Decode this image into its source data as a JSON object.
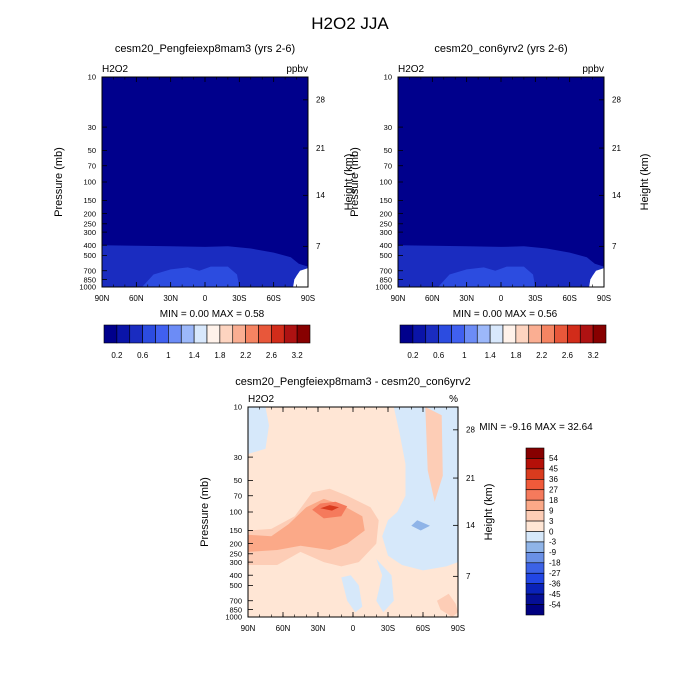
{
  "figure": {
    "title": "H2O2 JJA"
  },
  "chart_data": [
    {
      "id": "left",
      "type": "heatmap",
      "title": "cesm20_Pengfeiexp8mam3 (yrs 2-6)",
      "field": "H2O2",
      "units": "ppbv",
      "xlabel": "",
      "ylabel": "Pressure (mb)",
      "ylabel_right": "Height (km)",
      "x_ticks": [
        "90N",
        "60N",
        "30N",
        "0",
        "30S",
        "60S",
        "90S"
      ],
      "x_range": [
        90,
        -90
      ],
      "pressure_ticks": [
        "10",
        "30",
        "50",
        "70",
        "100",
        "150",
        "200",
        "250",
        "300",
        "400",
        "500",
        "700",
        "850",
        "1000"
      ],
      "pressure_range": [
        10,
        1000
      ],
      "height_ticks": [
        "28",
        "21",
        "14",
        "7"
      ],
      "min_max_text": "MIN =   0.00   MAX =    0.58",
      "background_color": "#00008C",
      "contours": [
        {
          "level": 0.2,
          "color": "#1A2CC0",
          "points": [
            [
              90,
              400
            ],
            [
              60,
              405
            ],
            [
              30,
              410
            ],
            [
              0,
              415
            ],
            [
              -20,
              410
            ],
            [
              -40,
              430
            ],
            [
              -60,
              470
            ],
            [
              -75,
              520
            ],
            [
              -82,
              600
            ],
            [
              -90,
              640
            ],
            [
              -90,
              1000
            ],
            [
              90,
              1000
            ]
          ]
        },
        {
          "level": 0.4,
          "color": "#2C4CE0",
          "points": [
            [
              55,
              1000
            ],
            [
              45,
              760
            ],
            [
              30,
              680
            ],
            [
              15,
              650
            ],
            [
              5,
              700
            ],
            [
              -5,
              640
            ],
            [
              -20,
              640
            ],
            [
              -28,
              760
            ],
            [
              -30,
              1000
            ]
          ]
        }
      ],
      "masked_region": {
        "color": "#FFFFFF",
        "points": [
          [
            -90,
            660
          ],
          [
            -83,
            700
          ],
          [
            -80,
            780
          ],
          [
            -78,
            850
          ],
          [
            -77,
            1000
          ],
          [
            -90,
            1000
          ]
        ]
      }
    },
    {
      "id": "right",
      "type": "heatmap",
      "title": "cesm20_con6yrv2 (yrs 2-6)",
      "field": "H2O2",
      "units": "ppbv",
      "xlabel": "",
      "ylabel": "Pressure (mb)",
      "ylabel_right": "Height (km)",
      "x_ticks": [
        "90N",
        "60N",
        "30N",
        "0",
        "30S",
        "60S",
        "90S"
      ],
      "x_range": [
        90,
        -90
      ],
      "pressure_ticks": [
        "10",
        "30",
        "50",
        "70",
        "100",
        "150",
        "200",
        "250",
        "300",
        "400",
        "500",
        "700",
        "850",
        "1000"
      ],
      "pressure_range": [
        10,
        1000
      ],
      "height_ticks": [
        "28",
        "21",
        "14",
        "7"
      ],
      "min_max_text": "MIN =   0.00   MAX =    0.56",
      "background_color": "#00008C",
      "contours": [
        {
          "level": 0.2,
          "color": "#1A2CC0",
          "points": [
            [
              90,
              400
            ],
            [
              60,
              405
            ],
            [
              30,
              410
            ],
            [
              0,
              415
            ],
            [
              -20,
              410
            ],
            [
              -40,
              430
            ],
            [
              -60,
              470
            ],
            [
              -75,
              520
            ],
            [
              -82,
              600
            ],
            [
              -90,
              640
            ],
            [
              -90,
              1000
            ],
            [
              90,
              1000
            ]
          ]
        },
        {
          "level": 0.4,
          "color": "#2C4CE0",
          "points": [
            [
              55,
              1000
            ],
            [
              45,
              760
            ],
            [
              30,
              680
            ],
            [
              15,
              650
            ],
            [
              5,
              700
            ],
            [
              -5,
              640
            ],
            [
              -20,
              640
            ],
            [
              -28,
              760
            ],
            [
              -30,
              1000
            ]
          ]
        }
      ],
      "masked_region": {
        "color": "#FFFFFF",
        "points": [
          [
            -90,
            660
          ],
          [
            -83,
            700
          ],
          [
            -80,
            780
          ],
          [
            -78,
            850
          ],
          [
            -77,
            1000
          ],
          [
            -90,
            1000
          ]
        ]
      }
    },
    {
      "id": "diff",
      "type": "heatmap",
      "title": "cesm20_Pengfeiexp8mam3 - cesm20_con6yrv2",
      "field": "H2O2",
      "units": "%",
      "xlabel": "",
      "ylabel": "Pressure (mb)",
      "ylabel_right": "Height (km)",
      "x_ticks": [
        "90N",
        "60N",
        "30N",
        "0",
        "30S",
        "60S",
        "90S"
      ],
      "x_range": [
        90,
        -90
      ],
      "pressure_ticks": [
        "10",
        "30",
        "50",
        "70",
        "100",
        "150",
        "200",
        "250",
        "300",
        "400",
        "500",
        "700",
        "850",
        "1000"
      ],
      "pressure_range": [
        10,
        1000
      ],
      "height_ticks": [
        "28",
        "21",
        "14",
        "7"
      ],
      "min_max_text": "MIN =  -9.16   MAX =   32.64",
      "background_color": "#FFE6D5",
      "contours": [
        {
          "level": -3,
          "color": "#D6E8FA",
          "points": [
            [
              90,
              10
            ],
            [
              75,
              10
            ],
            [
              72,
              15
            ],
            [
              75,
              25
            ],
            [
              90,
              28
            ]
          ]
        },
        {
          "level": -3,
          "color": "#D6E8FA",
          "points": [
            [
              -35,
              10
            ],
            [
              -40,
              18
            ],
            [
              -45,
              35
            ],
            [
              -45,
              70
            ],
            [
              -38,
              100
            ],
            [
              -30,
              120
            ],
            [
              -25,
              170
            ],
            [
              -30,
              260
            ],
            [
              -42,
              320
            ],
            [
              -60,
              360
            ],
            [
              -80,
              330
            ],
            [
              -90,
              300
            ],
            [
              -90,
              10
            ]
          ]
        },
        {
          "level": -3,
          "color": "#D6E8FA",
          "points": [
            [
              -20,
              280
            ],
            [
              -25,
              400
            ],
            [
              -20,
              700
            ],
            [
              -26,
              900
            ],
            [
              -35,
              700
            ],
            [
              -33,
              400
            ]
          ]
        },
        {
          "level": -3,
          "color": "#D6E8FA",
          "points": [
            [
              10,
              420
            ],
            [
              5,
              700
            ],
            [
              -2,
              900
            ],
            [
              -8,
              800
            ],
            [
              -5,
              500
            ],
            [
              2,
              400
            ]
          ]
        },
        {
          "level": 3,
          "color": "#FDCDB6",
          "points": [
            [
              90,
              150
            ],
            [
              70,
              145
            ],
            [
              50,
              110
            ],
            [
              35,
              65
            ],
            [
              20,
              60
            ],
            [
              5,
              70
            ],
            [
              -15,
              90
            ],
            [
              -22,
              120
            ],
            [
              -20,
              200
            ],
            [
              -5,
              300
            ],
            [
              10,
              330
            ],
            [
              25,
              300
            ],
            [
              45,
              240
            ],
            [
              65,
              320
            ],
            [
              90,
              320
            ]
          ]
        },
        {
          "level": 3,
          "color": "#FDCDB6",
          "points": [
            [
              -82,
              600
            ],
            [
              -88,
              750
            ],
            [
              -90,
              900
            ],
            [
              -85,
              1000
            ],
            [
              -75,
              850
            ],
            [
              -72,
              700
            ]
          ]
        },
        {
          "level": 3,
          "color": "#FDCDB6",
          "points": [
            [
              -62,
              10
            ],
            [
              -64,
              40
            ],
            [
              -70,
              80
            ],
            [
              -77,
              45
            ],
            [
              -76,
              12
            ]
          ]
        },
        {
          "level": 9,
          "color": "#FBA988",
          "points": [
            [
              90,
              165
            ],
            [
              70,
              170
            ],
            [
              55,
              130
            ],
            [
              40,
              90
            ],
            [
              25,
              75
            ],
            [
              10,
              85
            ],
            [
              -8,
              110
            ],
            [
              -10,
              150
            ],
            [
              5,
              200
            ],
            [
              20,
              230
            ],
            [
              45,
              210
            ],
            [
              65,
              230
            ],
            [
              90,
              240
            ]
          ]
        },
        {
          "level": 18,
          "color": "#F57A5C",
          "points": [
            [
              35,
              95
            ],
            [
              28,
              83
            ],
            [
              15,
              80
            ],
            [
              5,
              88
            ],
            [
              10,
              110
            ],
            [
              25,
              115
            ]
          ]
        },
        {
          "level": 27,
          "color": "#D93B1E",
          "points": [
            [
              28,
              92
            ],
            [
              20,
              86
            ],
            [
              12,
              90
            ],
            [
              18,
              97
            ]
          ]
        },
        {
          "level": -9,
          "color": "#8FB4E8",
          "points": [
            [
              -55,
              120
            ],
            [
              -50,
              135
            ],
            [
              -58,
              150
            ],
            [
              -66,
              135
            ]
          ]
        }
      ],
      "masked_region": null
    }
  ],
  "colorbar_main": {
    "labels": [
      "0.2",
      "0.6",
      "1",
      "1.4",
      "1.8",
      "2.2",
      "2.6",
      "3.2"
    ],
    "colors": [
      "#00008C",
      "#0A14A8",
      "#1A2CC0",
      "#2C4CE0",
      "#4060F0",
      "#6C8CF6",
      "#9CB8FA",
      "#D8E8FC",
      "#FFF2EA",
      "#FDD4C0",
      "#FAAE92",
      "#F58462",
      "#E8573A",
      "#D22C1A",
      "#AE1212",
      "#870000"
    ]
  },
  "colorbar_diff": {
    "labels": [
      "54",
      "45",
      "36",
      "27",
      "18",
      "9",
      "3",
      "0",
      "-3",
      "-9",
      "-18",
      "-27",
      "-36",
      "-45",
      "-54"
    ],
    "colors": [
      "#870000",
      "#B41008",
      "#D93B1E",
      "#F05A3A",
      "#F57A5C",
      "#FBA988",
      "#FDCDB6",
      "#FFE6D5",
      "#D6E8FA",
      "#8FB4E8",
      "#6A90E6",
      "#3C62E6",
      "#2246E4",
      "#0A22B8",
      "#050E95",
      "#000080"
    ]
  }
}
